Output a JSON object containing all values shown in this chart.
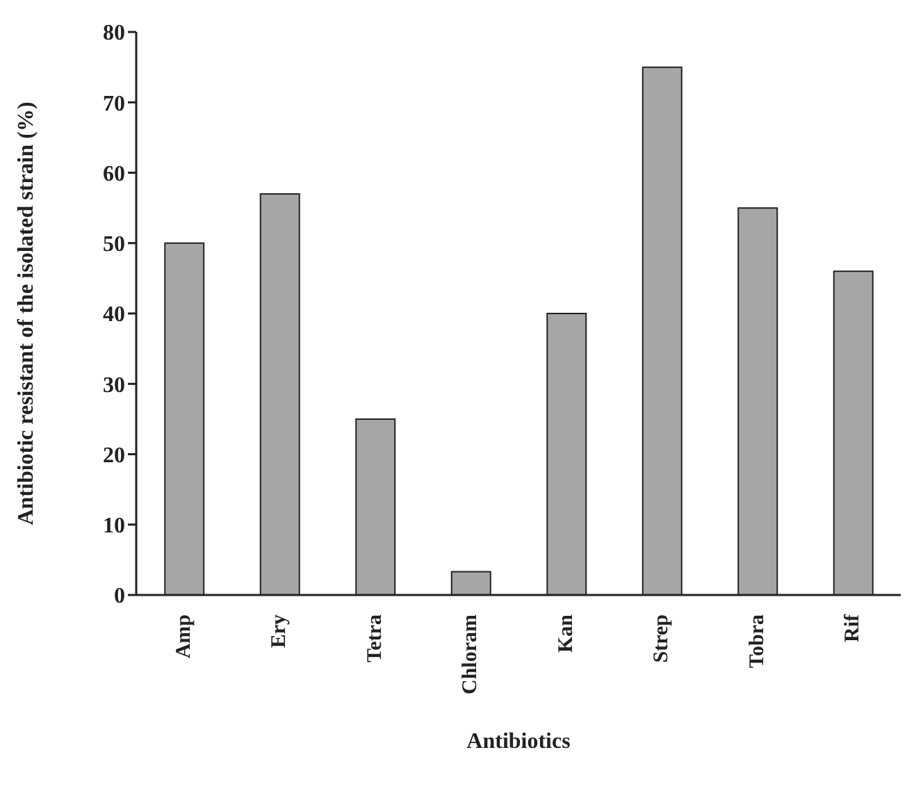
{
  "chart_data": {
    "type": "bar",
    "xlabel": "Antibiotics",
    "ylabel": "Antibiotic resistant of the isolated strain (%)",
    "categories": [
      "Amp",
      "Ery",
      "Tetra",
      "Chloram",
      "Kan",
      "Strep",
      "Tobra",
      "Rif"
    ],
    "values": [
      50,
      57,
      25,
      3.3,
      40,
      75,
      55,
      46
    ],
    "color": "#a6a6a6",
    "ylim": [
      0,
      80
    ],
    "yticks": [
      0,
      10,
      20,
      30,
      40,
      50,
      60,
      70,
      80
    ],
    "grid": false,
    "legend": false
  }
}
